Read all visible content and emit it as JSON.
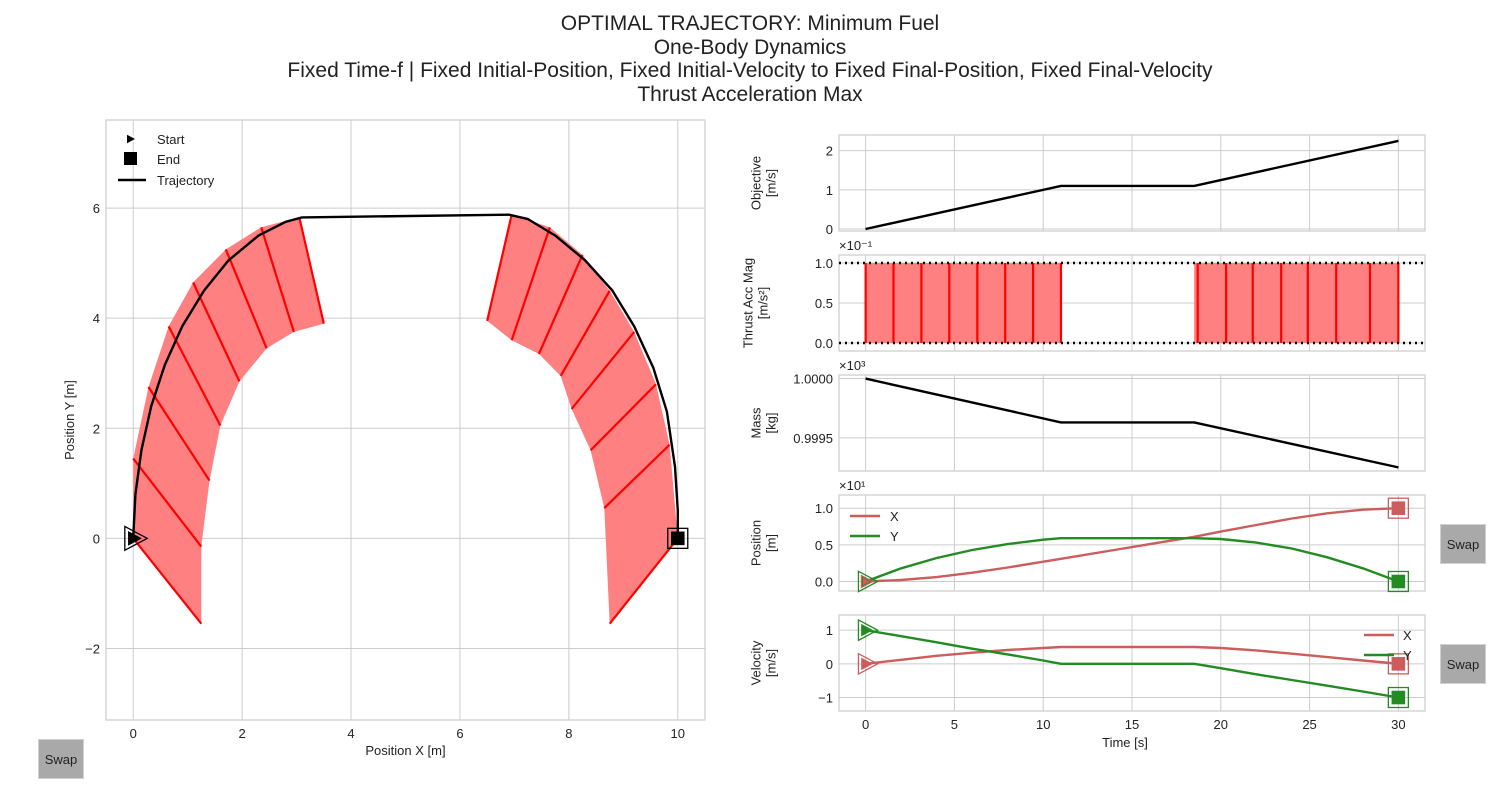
{
  "titles": [
    "OPTIMAL TRAJECTORY: Minimum Fuel",
    "One-Body Dynamics",
    "Fixed Time-f | Fixed Initial-Position, Fixed Initial-Velocity to Fixed Final-Position, Fixed Final-Velocity",
    "Thrust Acceleration Max"
  ],
  "buttons": {
    "swap_label": "Swap"
  },
  "colors": {
    "trajectory": "#000000",
    "thrust": "#ff0000",
    "thrust_fill": "#ff8080",
    "x_series": "#cd5c5c",
    "y_series": "#228b22",
    "grid": "#cccccc"
  },
  "chart_data": [
    {
      "type": "line",
      "name": "trajectory",
      "xlabel": "Position X [m]",
      "ylabel": "Position Y [m]",
      "xlim": [
        -0.5,
        10.5
      ],
      "ylim": [
        -3.3,
        7.6
      ],
      "xticks": [
        0,
        2,
        4,
        6,
        8,
        10
      ],
      "yticks": [
        -2,
        0,
        2,
        4,
        6
      ],
      "legend": {
        "position": "top-left",
        "entries": [
          "Start",
          "End",
          "Trajectory"
        ]
      },
      "start": [
        0,
        0
      ],
      "end": [
        10,
        0
      ],
      "trajectory": [
        [
          0,
          0
        ],
        [
          0.04,
          0.8
        ],
        [
          0.15,
          1.6
        ],
        [
          0.33,
          2.4
        ],
        [
          0.58,
          3.15
        ],
        [
          0.9,
          3.85
        ],
        [
          1.3,
          4.5
        ],
        [
          1.75,
          5.05
        ],
        [
          2.3,
          5.5
        ],
        [
          2.8,
          5.75
        ],
        [
          3.1,
          5.83
        ],
        [
          6.9,
          5.88
        ],
        [
          7.25,
          5.8
        ],
        [
          7.75,
          5.5
        ],
        [
          8.3,
          5.05
        ],
        [
          8.8,
          4.5
        ],
        [
          9.2,
          3.85
        ],
        [
          9.55,
          3.1
        ],
        [
          9.8,
          2.3
        ],
        [
          9.95,
          1.3
        ],
        [
          10,
          0.5
        ],
        [
          10,
          0
        ]
      ],
      "thrust_vectors": [
        {
          "from": [
            0.0,
            0.0
          ],
          "to": [
            1.25,
            -1.55
          ]
        },
        {
          "from": [
            0.0,
            1.45
          ],
          "to": [
            1.25,
            -0.15
          ]
        },
        {
          "from": [
            0.28,
            2.75
          ],
          "to": [
            1.4,
            1.05
          ]
        },
        {
          "from": [
            0.65,
            3.85
          ],
          "to": [
            1.6,
            2.05
          ]
        },
        {
          "from": [
            1.1,
            4.65
          ],
          "to": [
            1.95,
            2.85
          ]
        },
        {
          "from": [
            1.7,
            5.25
          ],
          "to": [
            2.45,
            3.45
          ]
        },
        {
          "from": [
            2.35,
            5.65
          ],
          "to": [
            2.95,
            3.75
          ]
        },
        {
          "from": [
            3.05,
            5.83
          ],
          "to": [
            3.5,
            3.9
          ]
        },
        {
          "from": [
            6.95,
            5.88
          ],
          "to": [
            6.5,
            3.95
          ]
        },
        {
          "from": [
            7.65,
            5.65
          ],
          "to": [
            6.95,
            3.6
          ]
        },
        {
          "from": [
            8.25,
            5.15
          ],
          "to": [
            7.45,
            3.35
          ]
        },
        {
          "from": [
            8.75,
            4.5
          ],
          "to": [
            7.85,
            2.95
          ]
        },
        {
          "from": [
            9.2,
            3.75
          ],
          "to": [
            8.05,
            2.35
          ]
        },
        {
          "from": [
            9.6,
            2.8
          ],
          "to": [
            8.4,
            1.6
          ]
        },
        {
          "from": [
            9.85,
            1.7
          ],
          "to": [
            8.65,
            0.55
          ]
        },
        {
          "from": [
            10.0,
            0.0
          ],
          "to": [
            8.75,
            -1.55
          ]
        }
      ]
    },
    {
      "type": "line",
      "name": "objective",
      "ylabel": "Objective\n[m/s]",
      "xlim": [
        -1.5,
        31.5
      ],
      "ylim": [
        -0.05,
        2.4
      ],
      "yticks": [
        0,
        1,
        2
      ],
      "x": [
        0,
        11,
        18.5,
        30
      ],
      "y": [
        0,
        1.1,
        1.1,
        2.25
      ]
    },
    {
      "type": "bar",
      "name": "thrust_acc_mag",
      "ylabel": "Thrust Acc Mag\n[m/s²]",
      "exponent": "×10⁻¹",
      "xlim": [
        -1.5,
        31.5
      ],
      "ylim": [
        -0.1,
        1.1
      ],
      "yticks": [
        0.0,
        0.5,
        1.0
      ],
      "ytick_labels": [
        "0.0",
        "0.5",
        "1.0"
      ],
      "limits": [
        0.0,
        1.0
      ],
      "on_intervals": [
        [
          0,
          11
        ],
        [
          18.5,
          30
        ]
      ],
      "spikes_x": [
        0,
        1.57,
        3.14,
        4.71,
        6.29,
        7.86,
        9.43,
        11,
        18.7,
        20.3,
        21.8,
        23.4,
        24.9,
        26.5,
        28.4,
        30
      ]
    },
    {
      "type": "line",
      "name": "mass",
      "ylabel": "Mass\n[kg]",
      "exponent": "×10³",
      "xlim": [
        -1.5,
        31.5
      ],
      "ylim": [
        0.99922,
        1.00003
      ],
      "yticks": [
        0.9995,
        1.0
      ],
      "ytick_labels": [
        "0.9995",
        "1.0000"
      ],
      "x": [
        0,
        11,
        18.5,
        30
      ],
      "y": [
        1.0,
        0.99963,
        0.99963,
        0.99925
      ]
    },
    {
      "type": "line",
      "name": "position",
      "ylabel": "Position\n[m]",
      "exponent": "×10¹",
      "xlim": [
        -1.5,
        31.5
      ],
      "ylim": [
        -0.13,
        1.18
      ],
      "yticks": [
        0.0,
        0.5,
        1.0
      ],
      "ytick_labels": [
        "0.0",
        "0.5",
        "1.0"
      ],
      "legend": {
        "position": "top-left",
        "entries": [
          "X",
          "Y"
        ]
      },
      "x": [
        0,
        2,
        4,
        6,
        8,
        10,
        11,
        14,
        17,
        18.5,
        20,
        22,
        24,
        26,
        28,
        30
      ],
      "series": [
        {
          "name": "X",
          "values": [
            0,
            0.02,
            0.06,
            0.12,
            0.19,
            0.27,
            0.31,
            0.43,
            0.55,
            0.61,
            0.68,
            0.77,
            0.86,
            0.93,
            0.98,
            1.0
          ]
        },
        {
          "name": "Y",
          "values": [
            0,
            0.18,
            0.32,
            0.43,
            0.51,
            0.57,
            0.59,
            0.59,
            0.59,
            0.59,
            0.58,
            0.53,
            0.45,
            0.33,
            0.18,
            0.0
          ]
        }
      ]
    },
    {
      "type": "line",
      "name": "velocity",
      "ylabel": "Velocity\n[m/s]",
      "xlabel": "Time [s]",
      "xlim": [
        -1.5,
        31.5
      ],
      "ylim": [
        -1.4,
        1.45
      ],
      "yticks": [
        -1,
        0,
        1
      ],
      "xticks": [
        0,
        5,
        10,
        15,
        20,
        25,
        30
      ],
      "legend": {
        "position": "right",
        "entries": [
          "X",
          "Y"
        ]
      },
      "x": [
        0,
        2,
        4,
        6,
        8,
        10,
        11,
        18.5,
        20,
        22,
        24,
        26,
        28,
        30
      ],
      "series": [
        {
          "name": "X",
          "values": [
            0,
            0.12,
            0.24,
            0.33,
            0.41,
            0.47,
            0.5,
            0.5,
            0.47,
            0.4,
            0.3,
            0.2,
            0.1,
            0.0
          ]
        },
        {
          "name": "Y",
          "values": [
            1.0,
            0.82,
            0.64,
            0.45,
            0.28,
            0.1,
            0.0,
            0.0,
            -0.13,
            -0.31,
            -0.48,
            -0.65,
            -0.82,
            -1.0
          ]
        }
      ]
    }
  ]
}
